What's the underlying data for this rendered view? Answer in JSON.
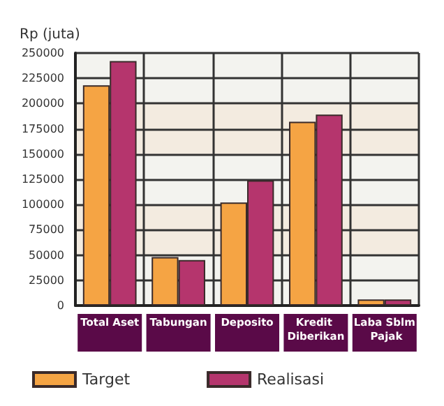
{
  "chart_data": {
    "type": "bar",
    "ylabel": "Rp (juta)",
    "categories": [
      "Total Aset",
      "Tabungan",
      "Deposito",
      "Kredit Diberikan",
      "Laba Sblm Pajak"
    ],
    "series": [
      {
        "name": "Target",
        "color": "#f5a444",
        "values": [
          218000,
          48000,
          102000,
          182000,
          6000
        ]
      },
      {
        "name": "Realisasi",
        "color": "#b5356d",
        "values": [
          242000,
          45000,
          124000,
          189000,
          6000
        ]
      }
    ],
    "ylim": [
      0,
      250000
    ],
    "yticks": [
      0,
      25000,
      50000,
      75000,
      100000,
      125000,
      150000,
      175000,
      200000,
      225000,
      250000
    ],
    "grid": true,
    "legend": "bottom"
  }
}
